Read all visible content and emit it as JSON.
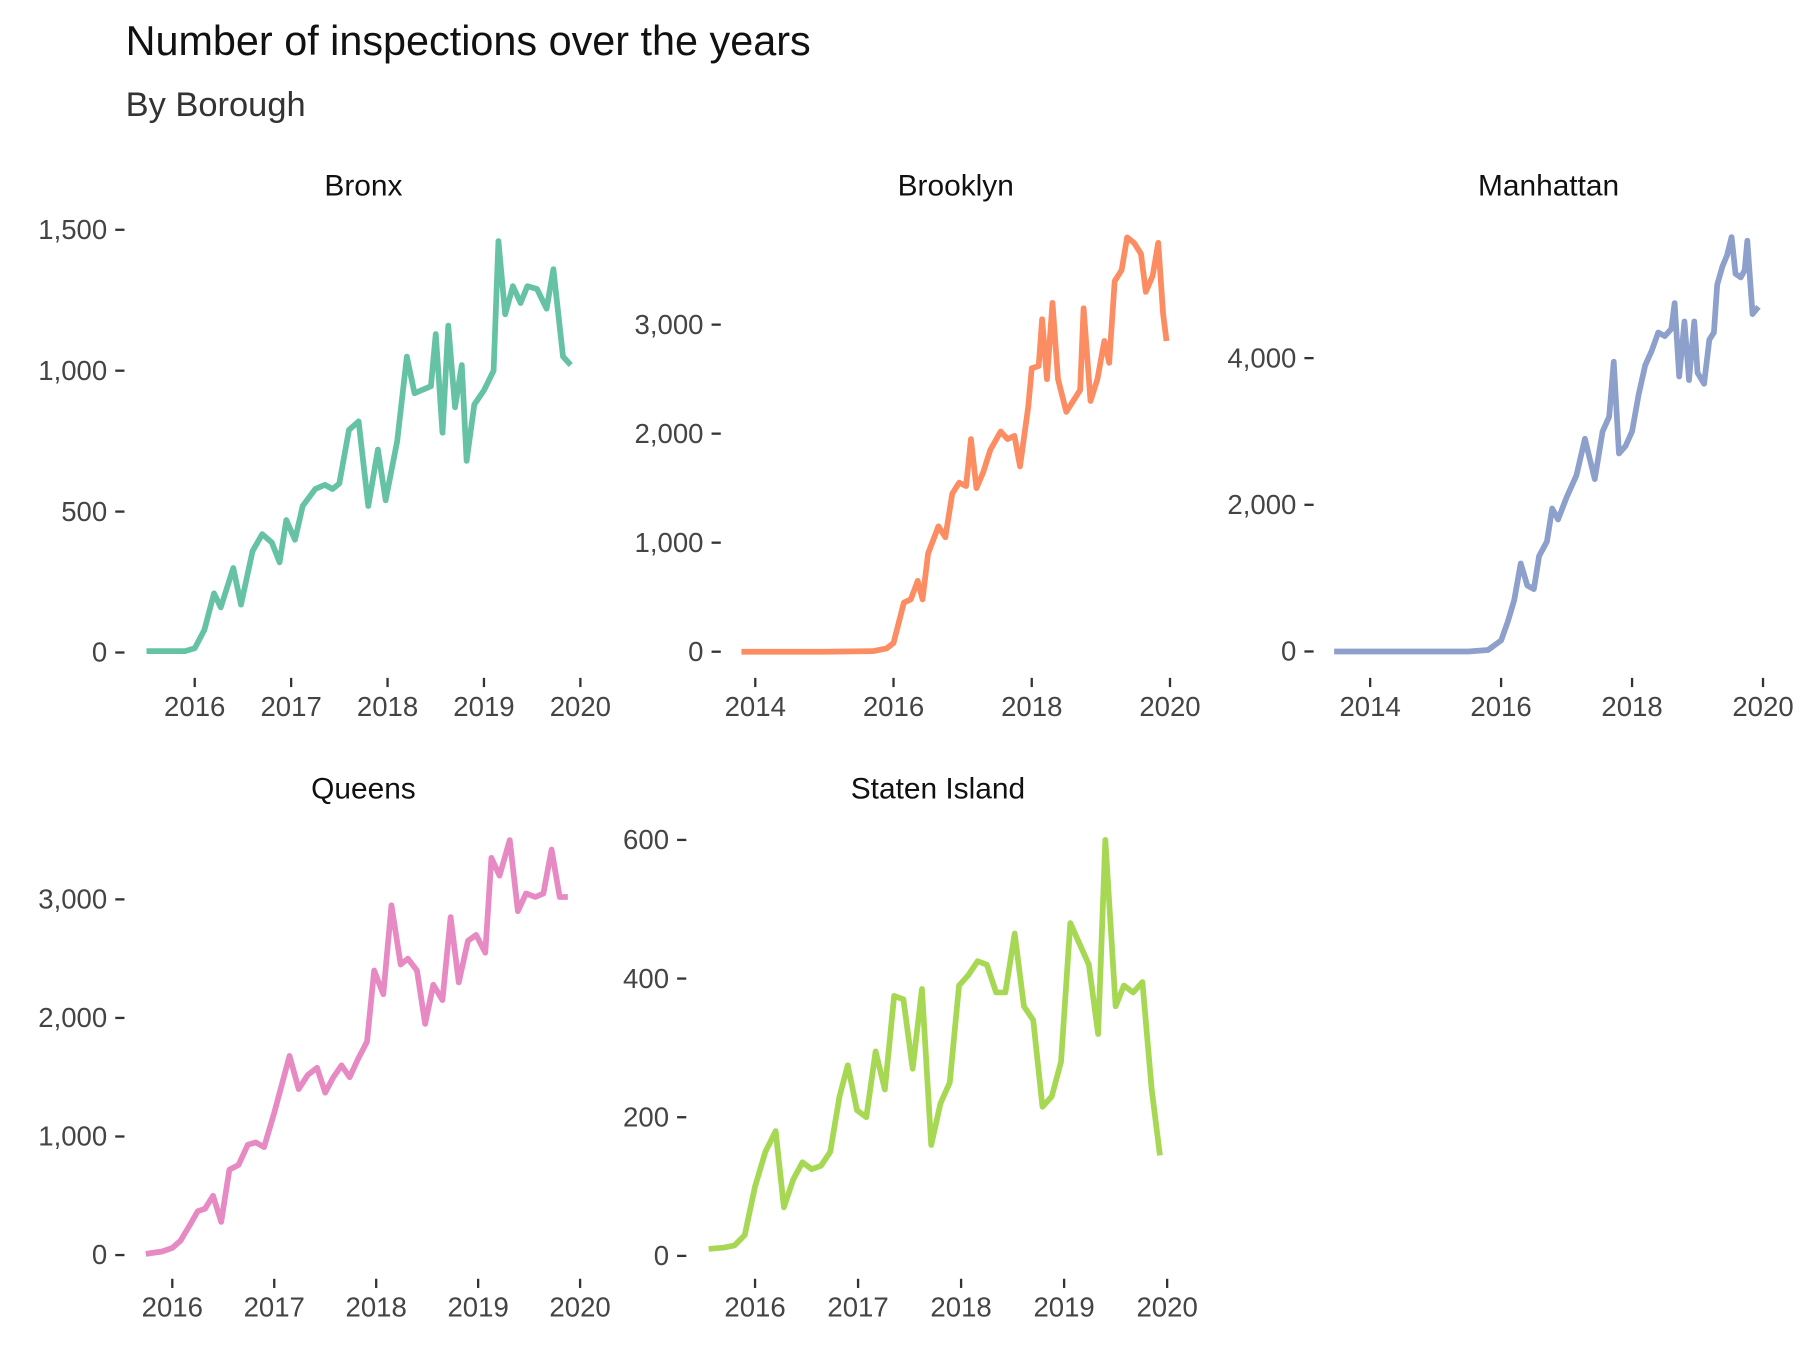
{
  "title": "Number of inspections over the years",
  "subtitle": "By Borough",
  "chart_data": [
    {
      "type": "line",
      "title": "Bronx",
      "color": "#66c2a5",
      "x": [
        2015.5,
        2015.9,
        2016.0,
        2016.1,
        2016.2,
        2016.27,
        2016.4,
        2016.48,
        2016.6,
        2016.7,
        2016.8,
        2016.88,
        2016.95,
        2017.04,
        2017.12,
        2017.25,
        2017.35,
        2017.43,
        2017.5,
        2017.6,
        2017.7,
        2017.8,
        2017.9,
        2017.98,
        2018.1,
        2018.2,
        2018.28,
        2018.45,
        2018.5,
        2018.57,
        2018.63,
        2018.7,
        2018.77,
        2018.82,
        2018.9,
        2019.0,
        2019.1,
        2019.15,
        2019.22,
        2019.3,
        2019.38,
        2019.45,
        2019.55,
        2019.65,
        2019.72,
        2019.82,
        2019.9
      ],
      "values": [
        5,
        5,
        15,
        80,
        210,
        160,
        300,
        170,
        360,
        420,
        390,
        320,
        470,
        400,
        520,
        580,
        595,
        580,
        600,
        790,
        820,
        520,
        720,
        540,
        750,
        1050,
        920,
        945,
        1130,
        780,
        1160,
        870,
        1020,
        680,
        880,
        930,
        1000,
        1460,
        1200,
        1300,
        1240,
        1300,
        1290,
        1220,
        1360,
        1050,
        1020
      ],
      "xlim": [
        2015.45,
        2020.05
      ],
      "xticks": [
        2016,
        2017,
        2018,
        2019,
        2020
      ],
      "ylim": [
        -90,
        1500
      ],
      "yticks": [
        0,
        500,
        {
          "value": 1000,
          "label": "1,000"
        },
        {
          "value": 1500,
          "label": "1,500"
        }
      ]
    },
    {
      "type": "line",
      "title": "Brooklyn",
      "color": "#fc8d62",
      "x": [
        2013.8,
        2015.0,
        2015.7,
        2015.9,
        2016.0,
        2016.15,
        2016.25,
        2016.35,
        2016.42,
        2016.5,
        2016.65,
        2016.75,
        2016.85,
        2016.95,
        2017.05,
        2017.12,
        2017.2,
        2017.3,
        2017.4,
        2017.55,
        2017.65,
        2017.75,
        2017.83,
        2017.95,
        2018.0,
        2018.1,
        2018.15,
        2018.22,
        2018.3,
        2018.38,
        2018.5,
        2018.6,
        2018.7,
        2018.75,
        2018.85,
        2018.95,
        2019.05,
        2019.12,
        2019.2,
        2019.3,
        2019.38,
        2019.48,
        2019.58,
        2019.65,
        2019.75,
        2019.83,
        2019.9,
        2019.95
      ],
      "values": [
        0,
        0,
        5,
        30,
        80,
        450,
        480,
        650,
        480,
        900,
        1150,
        1050,
        1450,
        1550,
        1520,
        1950,
        1500,
        1650,
        1850,
        2020,
        1950,
        1980,
        1700,
        2250,
        2600,
        2620,
        3050,
        2500,
        3200,
        2500,
        2200,
        2300,
        2400,
        3150,
        2300,
        2500,
        2850,
        2650,
        3400,
        3500,
        3800,
        3750,
        3650,
        3300,
        3450,
        3750,
        3100,
        2850
      ],
      "xlim": [
        2013.75,
        2020.05
      ],
      "xticks": [
        2014,
        2016,
        2018,
        2020
      ],
      "ylim": [
        -240,
        3870
      ],
      "yticks": [
        0,
        {
          "value": 1000,
          "label": "1,000"
        },
        {
          "value": 2000,
          "label": "2,000"
        },
        {
          "value": 3000,
          "label": "3,000"
        }
      ]
    },
    {
      "type": "line",
      "title": "Manhattan",
      "color": "#8da0cb",
      "x": [
        2013.45,
        2015.5,
        2015.8,
        2016.0,
        2016.1,
        2016.2,
        2016.3,
        2016.4,
        2016.5,
        2016.58,
        2016.7,
        2016.78,
        2016.87,
        2017.0,
        2017.15,
        2017.28,
        2017.43,
        2017.55,
        2017.65,
        2017.72,
        2017.8,
        2017.9,
        2018.0,
        2018.1,
        2018.2,
        2018.3,
        2018.4,
        2018.5,
        2018.6,
        2018.65,
        2018.72,
        2018.8,
        2018.87,
        2018.95,
        2019.0,
        2019.1,
        2019.18,
        2019.25,
        2019.3,
        2019.38,
        2019.45,
        2019.52,
        2019.58,
        2019.66,
        2019.72,
        2019.76,
        2019.84,
        2019.93
      ],
      "values": [
        0,
        0,
        20,
        150,
        400,
        700,
        1200,
        900,
        850,
        1300,
        1500,
        1950,
        1800,
        2100,
        2400,
        2900,
        2350,
        3000,
        3200,
        3950,
        2700,
        2800,
        3000,
        3500,
        3900,
        4100,
        4350,
        4300,
        4400,
        4750,
        3750,
        4500,
        3700,
        4500,
        3800,
        3650,
        4250,
        4350,
        5000,
        5250,
        5400,
        5650,
        5150,
        5100,
        5200,
        5600,
        4600,
        4700
      ],
      "xlim": [
        2013.4,
        2020.05
      ],
      "xticks": [
        2014,
        2016,
        2018,
        2020
      ],
      "ylim": [
        -360,
        5750
      ],
      "yticks": [
        0,
        {
          "value": 2000,
          "label": "2,000"
        },
        {
          "value": 4000,
          "label": "4,000"
        }
      ]
    },
    {
      "type": "line",
      "title": "Queens",
      "color": "#e78ac3",
      "x": [
        2015.74,
        2015.9,
        2016.0,
        2016.08,
        2016.17,
        2016.25,
        2016.32,
        2016.4,
        2016.48,
        2016.56,
        2016.65,
        2016.74,
        2016.82,
        2016.9,
        2017.0,
        2017.15,
        2017.24,
        2017.33,
        2017.42,
        2017.5,
        2017.58,
        2017.66,
        2017.74,
        2017.82,
        2017.91,
        2017.98,
        2018.07,
        2018.15,
        2018.24,
        2018.31,
        2018.4,
        2018.48,
        2018.56,
        2018.65,
        2018.73,
        2018.81,
        2018.9,
        2018.98,
        2019.07,
        2019.13,
        2019.21,
        2019.31,
        2019.39,
        2019.47,
        2019.56,
        2019.64,
        2019.72,
        2019.8,
        2019.88
      ],
      "values": [
        10,
        30,
        60,
        120,
        250,
        370,
        390,
        500,
        280,
        720,
        760,
        930,
        950,
        910,
        1200,
        1680,
        1400,
        1520,
        1580,
        1370,
        1500,
        1600,
        1500,
        1650,
        1800,
        2400,
        2200,
        2950,
        2450,
        2500,
        2400,
        1950,
        2280,
        2150,
        2850,
        2300,
        2650,
        2700,
        2550,
        3350,
        3200,
        3500,
        2900,
        3050,
        3020,
        3050,
        3420,
        3020,
        3020
      ],
      "xlim": [
        2015.7,
        2020.05
      ],
      "xticks": [
        2016,
        2017,
        2018,
        2019,
        2020
      ],
      "ylim": [
        -200,
        3560
      ],
      "yticks": [
        0,
        {
          "value": 1000,
          "label": "1,000"
        },
        {
          "value": 2000,
          "label": "2,000"
        },
        {
          "value": 3000,
          "label": "3,000"
        }
      ]
    },
    {
      "type": "line",
      "title": "Staten Island",
      "color": "#a6d854",
      "x": [
        2015.55,
        2015.7,
        2015.8,
        2015.9,
        2016.0,
        2016.1,
        2016.2,
        2016.28,
        2016.37,
        2016.46,
        2016.55,
        2016.64,
        2016.73,
        2016.82,
        2016.9,
        2016.99,
        2017.08,
        2017.17,
        2017.26,
        2017.35,
        2017.44,
        2017.53,
        2017.62,
        2017.71,
        2017.8,
        2017.89,
        2017.98,
        2018.07,
        2018.16,
        2018.25,
        2018.34,
        2018.43,
        2018.52,
        2018.61,
        2018.7,
        2018.79,
        2018.88,
        2018.97,
        2019.06,
        2019.15,
        2019.24,
        2019.33,
        2019.4,
        2019.5,
        2019.58,
        2019.67,
        2019.76,
        2019.85,
        2019.93
      ],
      "values": [
        10,
        12,
        15,
        30,
        100,
        150,
        180,
        70,
        110,
        135,
        125,
        130,
        150,
        230,
        275,
        210,
        200,
        295,
        240,
        375,
        370,
        270,
        385,
        160,
        220,
        250,
        390,
        405,
        425,
        420,
        380,
        380,
        465,
        360,
        340,
        215,
        230,
        280,
        480,
        450,
        420,
        320,
        600,
        360,
        390,
        380,
        395,
        240,
        145
      ],
      "xlim": [
        2015.5,
        2020.05
      ],
      "xticks": [
        2016,
        2017,
        2018,
        2019,
        2020
      ],
      "ylim": [
        -33,
        610
      ],
      "yticks": [
        0,
        200,
        400,
        600
      ]
    }
  ]
}
